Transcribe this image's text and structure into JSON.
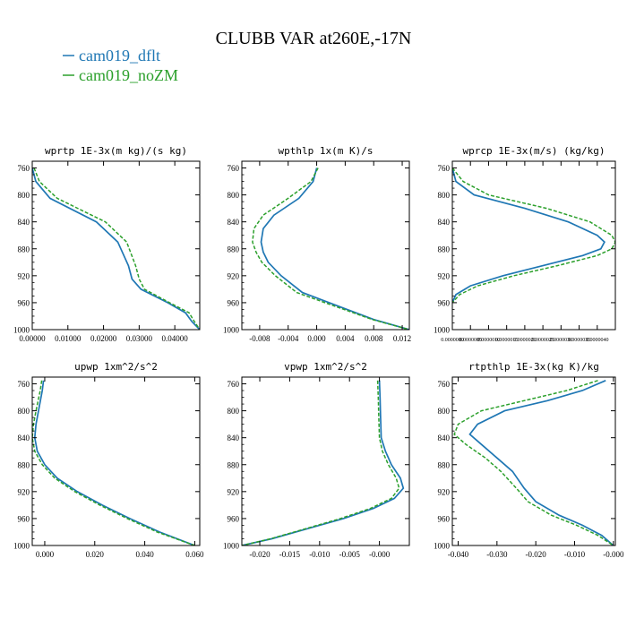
{
  "title": "CLUBB VAR at260E,-17N",
  "colors": {
    "cam019_dflt": "#1f77b4",
    "cam019_noZM": "#2ca02c",
    "axis": "#000000"
  },
  "legend": [
    {
      "name": "cam019_dflt",
      "color": "#1f77b4",
      "dash": "solid"
    },
    {
      "name": "cam019_noZM",
      "color": "#2ca02c",
      "dash": "dashed"
    }
  ],
  "chart_data": [
    {
      "type": "line",
      "title": "wprtp  1E-3x(m kg)/(s kg)",
      "xlim": [
        0,
        0.047
      ],
      "ylim": [
        1000,
        750
      ],
      "xticks": [
        0,
        0.01,
        0.02,
        0.03,
        0.04
      ],
      "xticklabels": [
        "0.00000",
        "0.01000",
        "0.02000",
        "0.03000",
        "0.04000"
      ],
      "yticks": [
        760,
        800,
        840,
        880,
        920,
        960,
        1000
      ],
      "yticklabels": [
        "760",
        "800",
        "840",
        "880",
        "920",
        "960",
        "1000"
      ],
      "series": [
        {
          "name": "cam019_dflt",
          "y": [
            760,
            780,
            805,
            840,
            870,
            905,
            925,
            940,
            960,
            975,
            988,
            1000
          ],
          "values": [
            0.0,
            0.001,
            0.005,
            0.018,
            0.024,
            0.027,
            0.028,
            0.0305,
            0.038,
            0.043,
            0.0448,
            0.047
          ]
        },
        {
          "name": "cam019_noZM",
          "y": [
            760,
            780,
            805,
            840,
            870,
            905,
            925,
            940,
            960,
            975,
            988,
            1000
          ],
          "values": [
            0.0005,
            0.002,
            0.007,
            0.0205,
            0.0265,
            0.029,
            0.03,
            0.0315,
            0.0385,
            0.044,
            0.0455,
            0.047
          ]
        }
      ]
    },
    {
      "type": "line",
      "title": "wpthlp  1x(m K)/s",
      "xlim": [
        -0.0105,
        0.013
      ],
      "ylim": [
        1000,
        750
      ],
      "xticks": [
        -0.008,
        -0.004,
        0.0,
        0.004,
        0.008,
        0.012
      ],
      "xticklabels": [
        "-0.008",
        "-0.004",
        "0.000",
        "0.004",
        "0.008",
        "0.012"
      ],
      "yticks": [
        760,
        800,
        840,
        880,
        920,
        960,
        1000
      ],
      "yticklabels": [
        "760",
        "800",
        "840",
        "880",
        "920",
        "960",
        "1000"
      ],
      "series": [
        {
          "name": "cam019_dflt",
          "y": [
            760,
            780,
            805,
            830,
            850,
            870,
            885,
            900,
            920,
            945,
            965,
            985,
            1000
          ],
          "values": [
            0.0,
            -0.0005,
            -0.0025,
            -0.006,
            -0.0075,
            -0.0078,
            -0.0075,
            -0.0068,
            -0.005,
            -0.002,
            0.003,
            0.008,
            0.013
          ]
        },
        {
          "name": "cam019_noZM",
          "y": [
            760,
            780,
            805,
            830,
            850,
            870,
            885,
            900,
            920,
            945,
            965,
            985,
            1000
          ],
          "values": [
            0.0002,
            -0.0008,
            -0.004,
            -0.0075,
            -0.0088,
            -0.009,
            -0.0085,
            -0.0077,
            -0.0058,
            -0.0028,
            0.0025,
            0.0078,
            0.013
          ]
        }
      ]
    },
    {
      "type": "line",
      "title": "wprcp  1E-3x(m/s) (kg/kg)",
      "xlim": [
        0,
        4.5e-06
      ],
      "ylim": [
        1000,
        750
      ],
      "xticks": [
        0,
        5e-07,
        1e-06,
        1.5e-06,
        2e-06,
        2.5e-06,
        3e-06,
        3.5e-06,
        4e-06
      ],
      "xticklabels": [
        "0.0000000",
        "0.0000005",
        "0.0000010",
        "0.0000015",
        "0.0000020",
        "0.0000025",
        "0.0000030",
        "0.0000035",
        "0.0000040"
      ],
      "yticks": [
        760,
        800,
        840,
        880,
        920,
        960,
        1000
      ],
      "yticklabels": [
        "760",
        "800",
        "840",
        "880",
        "920",
        "960",
        "1000"
      ],
      "series": [
        {
          "name": "cam019_dflt",
          "y": [
            760,
            780,
            800,
            820,
            840,
            860,
            870,
            880,
            890,
            905,
            920,
            935,
            948,
            960
          ],
          "values": [
            0.0,
            1e-07,
            6e-07,
            2e-06,
            3.2e-06,
            4e-06,
            4.2e-06,
            4.1e-06,
            3.6e-06,
            2.5e-06,
            1.4e-06,
            5e-07,
            1e-07,
            0.0
          ]
        },
        {
          "name": "cam019_noZM",
          "y": [
            760,
            780,
            800,
            820,
            840,
            860,
            870,
            880,
            890,
            905,
            920,
            935,
            948,
            960
          ],
          "values": [
            0.0,
            3e-07,
            1e-06,
            2.6e-06,
            3.8e-06,
            4.4e-06,
            4.5e-06,
            4.4e-06,
            4e-06,
            2.9e-06,
            1.7e-06,
            7e-07,
            2e-07,
            0.0
          ]
        }
      ]
    },
    {
      "type": "line",
      "title": "upwp  1xm^2/s^2",
      "xlim": [
        -0.005,
        0.062
      ],
      "ylim": [
        1000,
        750
      ],
      "xticks": [
        0.0,
        0.02,
        0.04,
        0.06
      ],
      "xticklabels": [
        "0.000",
        "0.020",
        "0.040",
        "0.060"
      ],
      "yticks": [
        760,
        800,
        840,
        880,
        920,
        960,
        1000
      ],
      "yticklabels": [
        "760",
        "800",
        "840",
        "880",
        "920",
        "960",
        "1000"
      ],
      "series": [
        {
          "name": "cam019_dflt",
          "y": [
            755,
            770,
            800,
            820,
            840,
            860,
            880,
            900,
            920,
            940,
            960,
            980,
            1000
          ],
          "values": [
            -0.0005,
            -0.001,
            -0.0025,
            -0.0035,
            -0.004,
            -0.003,
            0.0,
            0.005,
            0.013,
            0.023,
            0.034,
            0.046,
            0.06
          ]
        },
        {
          "name": "cam019_noZM",
          "y": [
            755,
            770,
            800,
            820,
            840,
            860,
            880,
            900,
            920,
            940,
            960,
            980,
            1000
          ],
          "values": [
            -0.0012,
            -0.0018,
            -0.0035,
            -0.0045,
            -0.005,
            -0.004,
            -0.001,
            0.004,
            0.012,
            0.022,
            0.033,
            0.045,
            0.06
          ]
        }
      ]
    },
    {
      "type": "line",
      "title": "vpwp  1xm^2/s^2",
      "xlim": [
        -0.023,
        0.005
      ],
      "ylim": [
        1000,
        750
      ],
      "xticks": [
        -0.02,
        -0.015,
        -0.01,
        -0.005,
        0.0
      ],
      "xticklabels": [
        "-0.020",
        "-0.015",
        "-0.010",
        "-0.005",
        "-0.000"
      ],
      "yticks": [
        760,
        800,
        840,
        880,
        920,
        960,
        1000
      ],
      "yticklabels": [
        "760",
        "800",
        "840",
        "880",
        "920",
        "960",
        "1000"
      ],
      "series": [
        {
          "name": "cam019_dflt",
          "y": [
            755,
            780,
            810,
            840,
            860,
            880,
            900,
            915,
            930,
            945,
            960,
            975,
            990,
            1000
          ],
          "values": [
            0.0,
            0.0001,
            0.0002,
            0.0003,
            0.001,
            0.002,
            0.0035,
            0.004,
            0.0025,
            -0.001,
            -0.006,
            -0.012,
            -0.018,
            -0.023
          ]
        },
        {
          "name": "cam019_noZM",
          "y": [
            755,
            780,
            810,
            840,
            860,
            880,
            900,
            915,
            930,
            945,
            960,
            975,
            990,
            1000
          ],
          "values": [
            -0.0003,
            -0.0002,
            -0.0001,
            0.0,
            0.0005,
            0.0015,
            0.0028,
            0.0033,
            0.002,
            -0.0015,
            -0.0065,
            -0.0123,
            -0.0182,
            -0.023
          ]
        }
      ]
    },
    {
      "type": "line",
      "title": "rtpthlp  1E-3x(kg K)/kg",
      "xlim": [
        -0.0415,
        0.0005
      ],
      "ylim": [
        1000,
        750
      ],
      "xticks": [
        -0.04,
        -0.03,
        -0.02,
        -0.01,
        0.0
      ],
      "xticklabels": [
        "-0.040",
        "-0.030",
        "-0.020",
        "-0.010",
        "-0.000"
      ],
      "yticks": [
        760,
        800,
        840,
        880,
        920,
        960,
        1000
      ],
      "yticklabels": [
        "760",
        "800",
        "840",
        "880",
        "920",
        "960",
        "1000"
      ],
      "series": [
        {
          "name": "cam019_dflt",
          "y": [
            755,
            770,
            785,
            800,
            820,
            835,
            850,
            870,
            890,
            915,
            935,
            955,
            970,
            985,
            1000
          ],
          "values": [
            -0.002,
            -0.008,
            -0.017,
            -0.028,
            -0.035,
            -0.037,
            -0.034,
            -0.03,
            -0.026,
            -0.023,
            -0.02,
            -0.014,
            -0.008,
            -0.003,
            0.0
          ]
        },
        {
          "name": "cam019_noZM",
          "y": [
            755,
            770,
            785,
            800,
            820,
            835,
            850,
            870,
            890,
            915,
            935,
            955,
            970,
            985,
            1000
          ],
          "values": [
            -0.004,
            -0.012,
            -0.023,
            -0.034,
            -0.04,
            -0.041,
            -0.038,
            -0.033,
            -0.029,
            -0.025,
            -0.022,
            -0.016,
            -0.0095,
            -0.004,
            0.0
          ]
        }
      ]
    }
  ]
}
